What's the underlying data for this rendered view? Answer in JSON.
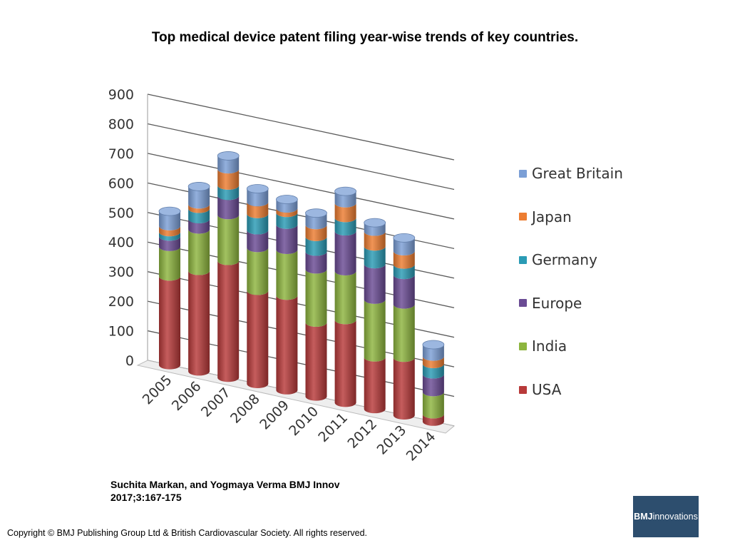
{
  "title": "Top medical device patent filing year-wise trends of key countries.",
  "citation": {
    "line1": "Suchita Markan, and Yogmaya Verma BMJ Innov",
    "line2": "2017;3:167-175"
  },
  "copyright": "Copyright © BMJ Publishing Group Ltd & British Cardiovascular Society. All rights reserved.",
  "logo": {
    "bold_text": "BMJ",
    "text": " innovations"
  },
  "chart_data": {
    "type": "bar",
    "stacked": true,
    "three_d": true,
    "title": "",
    "xlabel": "",
    "ylabel": "",
    "ylim": [
      0,
      900
    ],
    "yticks": [
      "0",
      "100",
      "200",
      "300",
      "400",
      "500",
      "600",
      "700",
      "800",
      "900"
    ],
    "grid": true,
    "legend_position": "right",
    "categories": [
      "2005",
      "2006",
      "2007",
      "2008",
      "2009",
      "2010",
      "2011",
      "2012",
      "2013",
      "2014"
    ],
    "series": [
      {
        "name": "USA",
        "color": "#b83a3a",
        "values": [
          300,
          340,
          395,
          315,
          320,
          250,
          280,
          175,
          195,
          25
        ]
      },
      {
        "name": "India",
        "color": "#8db53e",
        "values": [
          100,
          140,
          155,
          145,
          155,
          180,
          165,
          195,
          180,
          75
        ]
      },
      {
        "name": "Europe",
        "color": "#6a4b94",
        "values": [
          35,
          35,
          65,
          60,
          85,
          60,
          135,
          120,
          100,
          60
        ]
      },
      {
        "name": "Germany",
        "color": "#2a9bb5",
        "values": [
          15,
          35,
          35,
          55,
          40,
          50,
          45,
          60,
          35,
          35
        ]
      },
      {
        "name": "Japan",
        "color": "#ed7d31",
        "values": [
          20,
          15,
          55,
          40,
          15,
          40,
          50,
          50,
          45,
          25
        ]
      },
      {
        "name": "Great Britain",
        "color": "#7b9fd6",
        "values": [
          50,
          60,
          45,
          45,
          30,
          40,
          40,
          30,
          45,
          40
        ]
      }
    ]
  }
}
